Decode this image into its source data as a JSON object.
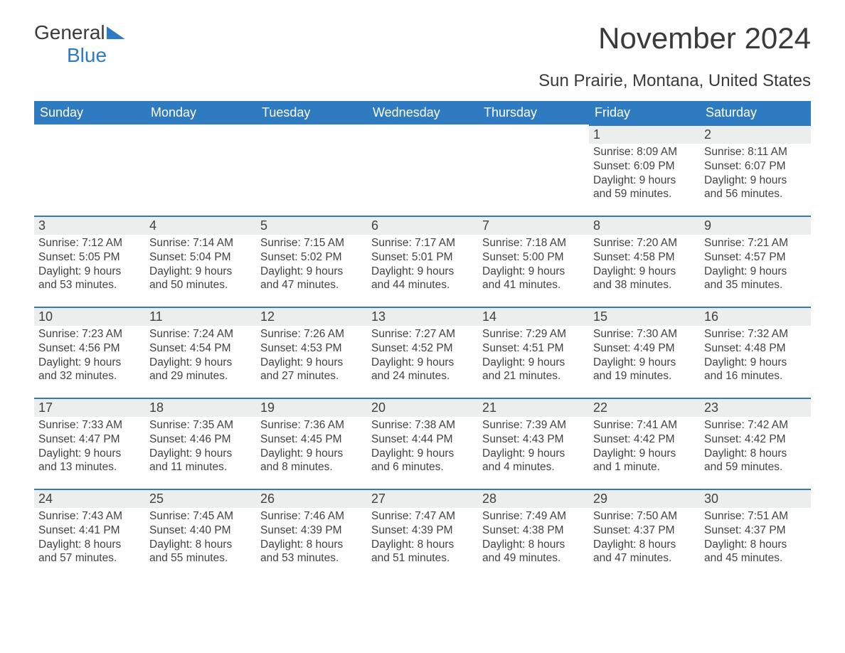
{
  "logo": {
    "word1": "General",
    "word2": "Blue"
  },
  "title": "November 2024",
  "subtitle": "Sun Prairie, Montana, United States",
  "colors": {
    "header_bg": "#2e7bc1",
    "header_text": "#ffffff",
    "daynum_bg": "#eceded",
    "accent_border": "#2e7bc1",
    "body_text": "#414141",
    "page_bg": "#ffffff"
  },
  "typography": {
    "title_fontsize": 42,
    "subtitle_fontsize": 24,
    "header_fontsize": 18,
    "daynum_fontsize": 18,
    "body_fontsize": 15.5,
    "font_family": "Arial"
  },
  "calendar": {
    "columns": [
      "Sunday",
      "Monday",
      "Tuesday",
      "Wednesday",
      "Thursday",
      "Friday",
      "Saturday"
    ],
    "weeks": [
      [
        null,
        null,
        null,
        null,
        null,
        {
          "n": "1",
          "sr": "8:09 AM",
          "ss": "6:09 PM",
          "dl": "9 hours and 59 minutes."
        },
        {
          "n": "2",
          "sr": "8:11 AM",
          "ss": "6:07 PM",
          "dl": "9 hours and 56 minutes."
        }
      ],
      [
        {
          "n": "3",
          "sr": "7:12 AM",
          "ss": "5:05 PM",
          "dl": "9 hours and 53 minutes."
        },
        {
          "n": "4",
          "sr": "7:14 AM",
          "ss": "5:04 PM",
          "dl": "9 hours and 50 minutes."
        },
        {
          "n": "5",
          "sr": "7:15 AM",
          "ss": "5:02 PM",
          "dl": "9 hours and 47 minutes."
        },
        {
          "n": "6",
          "sr": "7:17 AM",
          "ss": "5:01 PM",
          "dl": "9 hours and 44 minutes."
        },
        {
          "n": "7",
          "sr": "7:18 AM",
          "ss": "5:00 PM",
          "dl": "9 hours and 41 minutes."
        },
        {
          "n": "8",
          "sr": "7:20 AM",
          "ss": "4:58 PM",
          "dl": "9 hours and 38 minutes."
        },
        {
          "n": "9",
          "sr": "7:21 AM",
          "ss": "4:57 PM",
          "dl": "9 hours and 35 minutes."
        }
      ],
      [
        {
          "n": "10",
          "sr": "7:23 AM",
          "ss": "4:56 PM",
          "dl": "9 hours and 32 minutes."
        },
        {
          "n": "11",
          "sr": "7:24 AM",
          "ss": "4:54 PM",
          "dl": "9 hours and 29 minutes."
        },
        {
          "n": "12",
          "sr": "7:26 AM",
          "ss": "4:53 PM",
          "dl": "9 hours and 27 minutes."
        },
        {
          "n": "13",
          "sr": "7:27 AM",
          "ss": "4:52 PM",
          "dl": "9 hours and 24 minutes."
        },
        {
          "n": "14",
          "sr": "7:29 AM",
          "ss": "4:51 PM",
          "dl": "9 hours and 21 minutes."
        },
        {
          "n": "15",
          "sr": "7:30 AM",
          "ss": "4:49 PM",
          "dl": "9 hours and 19 minutes."
        },
        {
          "n": "16",
          "sr": "7:32 AM",
          "ss": "4:48 PM",
          "dl": "9 hours and 16 minutes."
        }
      ],
      [
        {
          "n": "17",
          "sr": "7:33 AM",
          "ss": "4:47 PM",
          "dl": "9 hours and 13 minutes."
        },
        {
          "n": "18",
          "sr": "7:35 AM",
          "ss": "4:46 PM",
          "dl": "9 hours and 11 minutes."
        },
        {
          "n": "19",
          "sr": "7:36 AM",
          "ss": "4:45 PM",
          "dl": "9 hours and 8 minutes."
        },
        {
          "n": "20",
          "sr": "7:38 AM",
          "ss": "4:44 PM",
          "dl": "9 hours and 6 minutes."
        },
        {
          "n": "21",
          "sr": "7:39 AM",
          "ss": "4:43 PM",
          "dl": "9 hours and 4 minutes."
        },
        {
          "n": "22",
          "sr": "7:41 AM",
          "ss": "4:42 PM",
          "dl": "9 hours and 1 minute."
        },
        {
          "n": "23",
          "sr": "7:42 AM",
          "ss": "4:42 PM",
          "dl": "8 hours and 59 minutes."
        }
      ],
      [
        {
          "n": "24",
          "sr": "7:43 AM",
          "ss": "4:41 PM",
          "dl": "8 hours and 57 minutes."
        },
        {
          "n": "25",
          "sr": "7:45 AM",
          "ss": "4:40 PM",
          "dl": "8 hours and 55 minutes."
        },
        {
          "n": "26",
          "sr": "7:46 AM",
          "ss": "4:39 PM",
          "dl": "8 hours and 53 minutes."
        },
        {
          "n": "27",
          "sr": "7:47 AM",
          "ss": "4:39 PM",
          "dl": "8 hours and 51 minutes."
        },
        {
          "n": "28",
          "sr": "7:49 AM",
          "ss": "4:38 PM",
          "dl": "8 hours and 49 minutes."
        },
        {
          "n": "29",
          "sr": "7:50 AM",
          "ss": "4:37 PM",
          "dl": "8 hours and 47 minutes."
        },
        {
          "n": "30",
          "sr": "7:51 AM",
          "ss": "4:37 PM",
          "dl": "8 hours and 45 minutes."
        }
      ]
    ],
    "labels": {
      "sunrise": "Sunrise: ",
      "sunset": "Sunset: ",
      "daylight": "Daylight: "
    }
  }
}
